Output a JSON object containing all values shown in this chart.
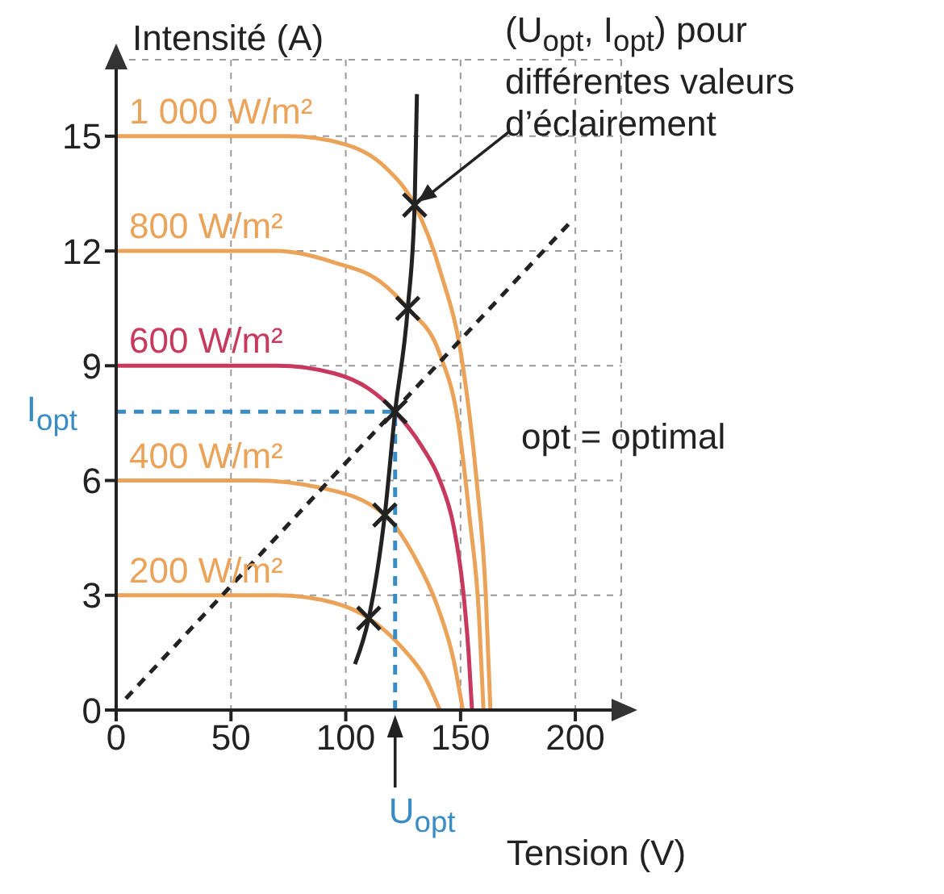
{
  "chart_data": {
    "type": "line",
    "xlabel": "Tension (V)",
    "ylabel": "Intensité (A)",
    "xlim": [
      0,
      220
    ],
    "ylim": [
      0,
      17
    ],
    "xticks": [
      0,
      50,
      100,
      150,
      200
    ],
    "yticks": [
      0,
      3,
      6,
      9,
      12,
      15
    ],
    "grid": true,
    "series": [
      {
        "name": "1 000 W/m²",
        "color": "#eba35a",
        "marker": "none",
        "line_style": "solid",
        "x": [
          0,
          75,
          99,
          117,
          130,
          141,
          151,
          157,
          161,
          163
        ],
        "values": [
          15,
          15,
          14.8,
          14.2,
          13.2,
          11.5,
          9,
          6,
          3,
          0
        ]
      },
      {
        "name": "800 W/m²",
        "color": "#eba35a",
        "marker": "none",
        "line_style": "solid",
        "x": [
          0,
          70,
          95,
          115,
          127,
          141,
          149,
          154,
          158,
          160
        ],
        "values": [
          12,
          12,
          11.7,
          11.2,
          10.5,
          9.3,
          7.5,
          5,
          2.5,
          0
        ]
      },
      {
        "name": "600 W/m²",
        "color": "#c73a5e",
        "marker": "none",
        "line_style": "solid",
        "x": [
          0,
          70,
          95,
          110,
          121.5,
          133,
          141,
          147,
          151,
          153.5,
          155
        ],
        "values": [
          9,
          9,
          8.8,
          8.4,
          7.8,
          6.9,
          6,
          4.8,
          3.2,
          1.5,
          0
        ]
      },
      {
        "name": "400 W/m²",
        "color": "#eba35a",
        "marker": "none",
        "line_style": "solid",
        "x": [
          0,
          60,
          90,
          117,
          130,
          140,
          147,
          151
        ],
        "values": [
          6,
          6,
          5.8,
          5.1,
          4,
          2.7,
          1.3,
          0
        ]
      },
      {
        "name": "200 W/m²",
        "color": "#eba35a",
        "marker": "none",
        "line_style": "solid",
        "x": [
          0,
          70,
          95,
          110,
          125,
          135,
          141
        ],
        "values": [
          3,
          3,
          2.8,
          2.4,
          1.6,
          0.8,
          0
        ]
      },
      {
        "type": "line",
        "color": "#3a8cc4",
        "marker": "none",
        "line_style": "dashed",
        "x": [
          0,
          121.5
        ],
        "values": [
          7.8,
          7.8
        ]
      },
      {
        "type": "line",
        "color": "#3a8cc4",
        "marker": "none",
        "line_style": "dashed",
        "x": [
          121.5,
          121.5
        ],
        "values": [
          0,
          7.8
        ]
      },
      {
        "type": "line",
        "color": "#222222",
        "marker": "none",
        "line_style": "dashed",
        "x": [
          4.2,
          197
        ],
        "values": [
          0.3,
          12.7
        ]
      },
      {
        "type": "line",
        "color": "#222222",
        "marker": "none",
        "line_style": "solid",
        "x": [
          104,
          110,
          117,
          121.5,
          127,
          130,
          131
        ],
        "values": [
          1.2,
          2.4,
          5.1,
          7.8,
          10.5,
          13.2,
          16.1
        ]
      },
      {
        "type": "scatter",
        "color": "#222222",
        "marker": "cross",
        "x": [
          110,
          117,
          121.5,
          127,
          130
        ],
        "values": [
          2.4,
          5.1,
          7.8,
          10.5,
          13.2
        ]
      }
    ],
    "annotations": [
      {
        "text": "(U$_{opt}$, I$_{opt}$) pour différentes valeurs d’éclairement",
        "x": 130,
        "y": 13.2
      },
      "opt = optimal",
      {
        "text": "I$_{opt}$",
        "x": 0,
        "y": 7.8
      },
      {
        "text": "U$_{opt}$",
        "x": 121.5,
        "y": 0
      }
    ]
  }
}
